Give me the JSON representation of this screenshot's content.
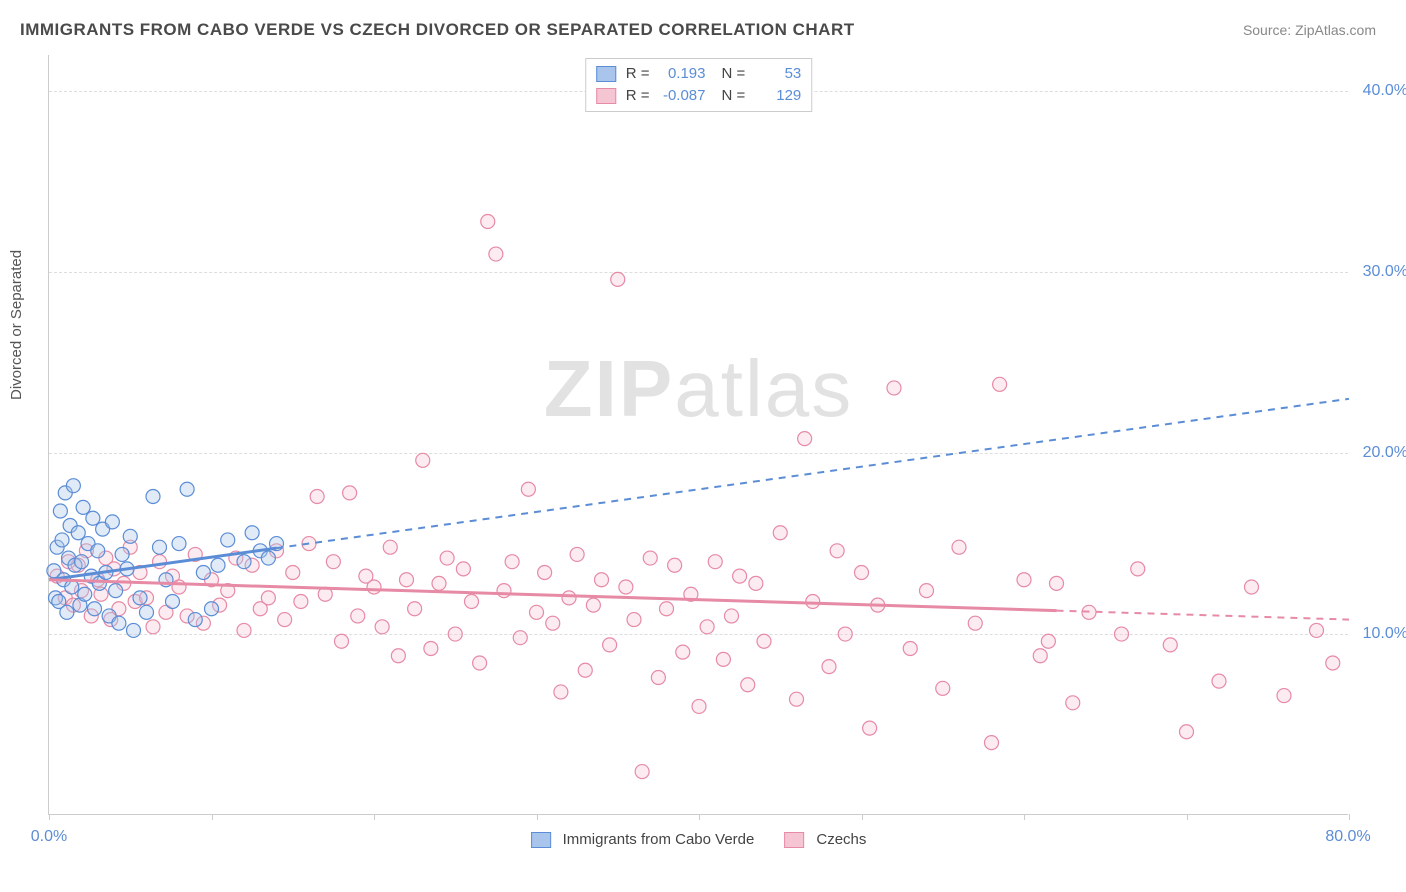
{
  "title": "IMMIGRANTS FROM CABO VERDE VS CZECH DIVORCED OR SEPARATED CORRELATION CHART",
  "source": "Source: ZipAtlas.com",
  "watermark_a": "ZIP",
  "watermark_b": "atlas",
  "ylabel": "Divorced or Separated",
  "chart": {
    "type": "scatter",
    "xlim": [
      0,
      80
    ],
    "ylim": [
      0,
      42
    ],
    "xtick_labels": {
      "0": "0.0%",
      "80": "80.0%"
    },
    "xtick_positions": [
      0,
      10,
      20,
      30,
      40,
      50,
      60,
      70,
      80
    ],
    "ytick_labels": {
      "10": "10.0%",
      "20": "20.0%",
      "30": "30.0%",
      "40": "40.0%"
    },
    "ytick_positions": [
      10,
      20,
      30,
      40
    ],
    "grid_color": "#dddddd",
    "background_color": "#ffffff",
    "marker_radius": 7,
    "marker_stroke_width": 1.2,
    "fill_opacity": 0.35,
    "series": [
      {
        "name": "Immigrants from Cabo Verde",
        "color_stroke": "#5b8dd6",
        "color_fill": "#a9c5ec",
        "R": "0.193",
        "N": "53",
        "trend": {
          "y_at_x0": 13.0,
          "y_at_xmax": 23.0,
          "solid_until_x": 14
        },
        "points": [
          [
            0.3,
            13.5
          ],
          [
            0.4,
            12.0
          ],
          [
            0.5,
            14.8
          ],
          [
            0.6,
            11.8
          ],
          [
            0.7,
            16.8
          ],
          [
            0.8,
            15.2
          ],
          [
            0.9,
            13.0
          ],
          [
            1.0,
            17.8
          ],
          [
            1.1,
            11.2
          ],
          [
            1.2,
            14.2
          ],
          [
            1.3,
            16.0
          ],
          [
            1.4,
            12.6
          ],
          [
            1.5,
            18.2
          ],
          [
            1.6,
            13.8
          ],
          [
            1.8,
            15.6
          ],
          [
            1.9,
            11.6
          ],
          [
            2.0,
            14.0
          ],
          [
            2.1,
            17.0
          ],
          [
            2.2,
            12.2
          ],
          [
            2.4,
            15.0
          ],
          [
            2.6,
            13.2
          ],
          [
            2.7,
            16.4
          ],
          [
            2.8,
            11.4
          ],
          [
            3.0,
            14.6
          ],
          [
            3.1,
            12.8
          ],
          [
            3.3,
            15.8
          ],
          [
            3.5,
            13.4
          ],
          [
            3.7,
            11.0
          ],
          [
            3.9,
            16.2
          ],
          [
            4.1,
            12.4
          ],
          [
            4.3,
            10.6
          ],
          [
            4.5,
            14.4
          ],
          [
            4.8,
            13.6
          ],
          [
            5.0,
            15.4
          ],
          [
            5.2,
            10.2
          ],
          [
            5.6,
            12.0
          ],
          [
            6.0,
            11.2
          ],
          [
            6.4,
            17.6
          ],
          [
            6.8,
            14.8
          ],
          [
            7.2,
            13.0
          ],
          [
            7.6,
            11.8
          ],
          [
            8.0,
            15.0
          ],
          [
            8.5,
            18.0
          ],
          [
            9.0,
            10.8
          ],
          [
            9.5,
            13.4
          ],
          [
            10.0,
            11.4
          ],
          [
            10.4,
            13.8
          ],
          [
            11.0,
            15.2
          ],
          [
            12.0,
            14.0
          ],
          [
            12.5,
            15.6
          ],
          [
            13.0,
            14.6
          ],
          [
            13.5,
            14.2
          ],
          [
            14.0,
            15.0
          ]
        ]
      },
      {
        "name": "Czechs",
        "color_stroke": "#e68aa5",
        "color_fill": "#f5c5d3",
        "R": "-0.087",
        "N": "129",
        "trend": {
          "y_at_x0": 13.0,
          "y_at_xmax": 10.8,
          "solid_until_x": 62
        },
        "points": [
          [
            0.5,
            13.2
          ],
          [
            1.0,
            12.0
          ],
          [
            1.2,
            14.0
          ],
          [
            1.5,
            11.6
          ],
          [
            1.8,
            13.8
          ],
          [
            2.0,
            12.4
          ],
          [
            2.3,
            14.6
          ],
          [
            2.6,
            11.0
          ],
          [
            3.0,
            13.0
          ],
          [
            3.2,
            12.2
          ],
          [
            3.5,
            14.2
          ],
          [
            3.8,
            10.8
          ],
          [
            4.0,
            13.6
          ],
          [
            4.3,
            11.4
          ],
          [
            4.6,
            12.8
          ],
          [
            5.0,
            14.8
          ],
          [
            5.3,
            11.8
          ],
          [
            5.6,
            13.4
          ],
          [
            6.0,
            12.0
          ],
          [
            6.4,
            10.4
          ],
          [
            6.8,
            14.0
          ],
          [
            7.2,
            11.2
          ],
          [
            7.6,
            13.2
          ],
          [
            8.0,
            12.6
          ],
          [
            8.5,
            11.0
          ],
          [
            9.0,
            14.4
          ],
          [
            9.5,
            10.6
          ],
          [
            10.0,
            13.0
          ],
          [
            10.5,
            11.6
          ],
          [
            11.0,
            12.4
          ],
          [
            11.5,
            14.2
          ],
          [
            12.0,
            10.2
          ],
          [
            12.5,
            13.8
          ],
          [
            13.0,
            11.4
          ],
          [
            13.5,
            12.0
          ],
          [
            14.0,
            14.6
          ],
          [
            14.5,
            10.8
          ],
          [
            15.0,
            13.4
          ],
          [
            15.5,
            11.8
          ],
          [
            16.0,
            15.0
          ],
          [
            16.5,
            17.6
          ],
          [
            17.0,
            12.2
          ],
          [
            17.5,
            14.0
          ],
          [
            18.0,
            9.6
          ],
          [
            18.5,
            17.8
          ],
          [
            19.0,
            11.0
          ],
          [
            19.5,
            13.2
          ],
          [
            20.0,
            12.6
          ],
          [
            20.5,
            10.4
          ],
          [
            21.0,
            14.8
          ],
          [
            21.5,
            8.8
          ],
          [
            22.0,
            13.0
          ],
          [
            22.5,
            11.4
          ],
          [
            23.0,
            19.6
          ],
          [
            23.5,
            9.2
          ],
          [
            24.0,
            12.8
          ],
          [
            24.5,
            14.2
          ],
          [
            25.0,
            10.0
          ],
          [
            25.5,
            13.6
          ],
          [
            26.0,
            11.8
          ],
          [
            26.5,
            8.4
          ],
          [
            27.0,
            32.8
          ],
          [
            27.5,
            31.0
          ],
          [
            28.0,
            12.4
          ],
          [
            28.5,
            14.0
          ],
          [
            29.0,
            9.8
          ],
          [
            29.5,
            18.0
          ],
          [
            30.0,
            11.2
          ],
          [
            30.5,
            13.4
          ],
          [
            31.0,
            10.6
          ],
          [
            31.5,
            6.8
          ],
          [
            32.0,
            12.0
          ],
          [
            32.5,
            14.4
          ],
          [
            33.0,
            8.0
          ],
          [
            33.5,
            11.6
          ],
          [
            34.0,
            13.0
          ],
          [
            34.5,
            9.4
          ],
          [
            35.0,
            29.6
          ],
          [
            35.5,
            12.6
          ],
          [
            36.0,
            10.8
          ],
          [
            36.5,
            2.4
          ],
          [
            37.0,
            14.2
          ],
          [
            37.5,
            7.6
          ],
          [
            38.0,
            11.4
          ],
          [
            38.5,
            13.8
          ],
          [
            39.0,
            9.0
          ],
          [
            39.5,
            12.2
          ],
          [
            40.0,
            6.0
          ],
          [
            40.5,
            10.4
          ],
          [
            41.0,
            14.0
          ],
          [
            41.5,
            8.6
          ],
          [
            42.0,
            11.0
          ],
          [
            42.5,
            13.2
          ],
          [
            43.0,
            7.2
          ],
          [
            43.5,
            12.8
          ],
          [
            44.0,
            9.6
          ],
          [
            45.0,
            15.6
          ],
          [
            46.0,
            6.4
          ],
          [
            46.5,
            20.8
          ],
          [
            47.0,
            11.8
          ],
          [
            48.0,
            8.2
          ],
          [
            48.5,
            14.6
          ],
          [
            49.0,
            10.0
          ],
          [
            50.0,
            13.4
          ],
          [
            50.5,
            4.8
          ],
          [
            51.0,
            11.6
          ],
          [
            52.0,
            23.6
          ],
          [
            53.0,
            9.2
          ],
          [
            54.0,
            12.4
          ],
          [
            55.0,
            7.0
          ],
          [
            56.0,
            14.8
          ],
          [
            57.0,
            10.6
          ],
          [
            58.0,
            4.0
          ],
          [
            58.5,
            23.8
          ],
          [
            60.0,
            13.0
          ],
          [
            61.0,
            8.8
          ],
          [
            61.5,
            9.6
          ],
          [
            62.0,
            12.8
          ],
          [
            63.0,
            6.2
          ],
          [
            64.0,
            11.2
          ],
          [
            66.0,
            10.0
          ],
          [
            67.0,
            13.6
          ],
          [
            69.0,
            9.4
          ],
          [
            70.0,
            4.6
          ],
          [
            72.0,
            7.4
          ],
          [
            74.0,
            12.6
          ],
          [
            76.0,
            6.6
          ],
          [
            78.0,
            10.2
          ],
          [
            79.0,
            8.4
          ]
        ]
      }
    ]
  },
  "colors": {
    "axis_text": "#5b8dd6",
    "title_text": "#4a4a4a",
    "source_text": "#888888"
  }
}
